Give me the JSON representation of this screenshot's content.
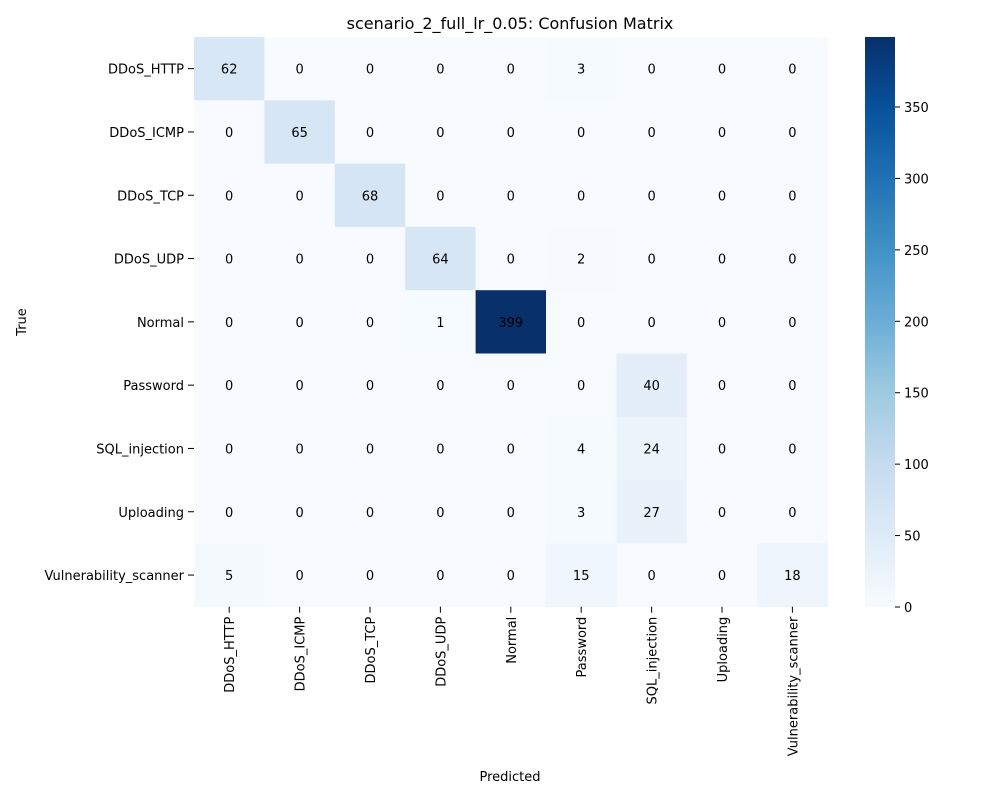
{
  "chart_data": {
    "type": "heatmap",
    "title": "scenario_2_full_lr_0.05: Confusion Matrix",
    "xlabel": "Predicted",
    "ylabel": "True",
    "row_labels": [
      "DDoS_HTTP",
      "DDoS_ICMP",
      "DDoS_TCP",
      "DDoS_UDP",
      "Normal",
      "Password",
      "SQL_injection",
      "Uploading",
      "Vulnerability_scanner"
    ],
    "col_labels": [
      "DDoS_HTTP",
      "DDoS_ICMP",
      "DDoS_TCP",
      "DDoS_UDP",
      "Normal",
      "Password",
      "SQL_injection",
      "Uploading",
      "Vulnerability_scanner"
    ],
    "values": [
      [
        62,
        0,
        0,
        0,
        0,
        3,
        0,
        0,
        0
      ],
      [
        0,
        65,
        0,
        0,
        0,
        0,
        0,
        0,
        0
      ],
      [
        0,
        0,
        68,
        0,
        0,
        0,
        0,
        0,
        0
      ],
      [
        0,
        0,
        0,
        64,
        0,
        2,
        0,
        0,
        0
      ],
      [
        0,
        0,
        0,
        1,
        399,
        0,
        0,
        0,
        0
      ],
      [
        0,
        0,
        0,
        0,
        0,
        0,
        40,
        0,
        0
      ],
      [
        0,
        0,
        0,
        0,
        0,
        4,
        24,
        0,
        0
      ],
      [
        0,
        0,
        0,
        0,
        0,
        3,
        27,
        0,
        0
      ],
      [
        5,
        0,
        0,
        0,
        0,
        15,
        0,
        0,
        18
      ]
    ],
    "colormap": "Blues",
    "colorbar": {
      "range": [
        0,
        399
      ],
      "ticks": [
        0,
        50,
        100,
        150,
        200,
        250,
        300,
        350
      ]
    }
  }
}
